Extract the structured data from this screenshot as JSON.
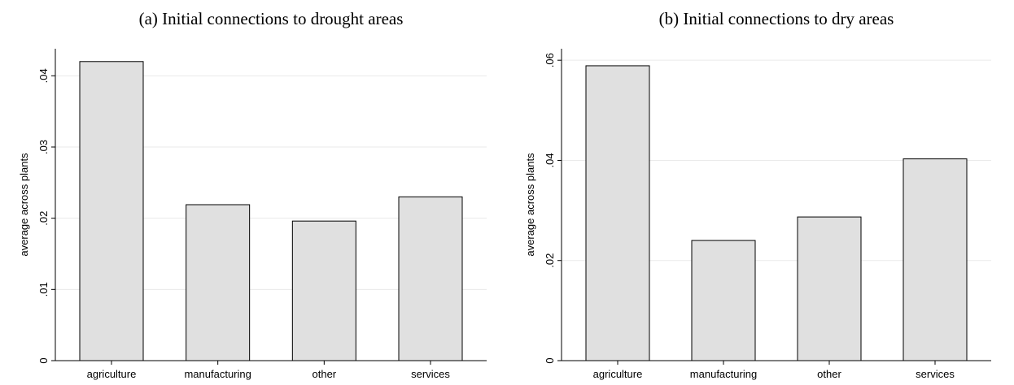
{
  "chart_data": [
    {
      "type": "bar",
      "title": "(a) Initial connections to drought areas",
      "y_label": "average across plants",
      "categories": [
        "agriculture",
        "manufacturing",
        "other",
        "services"
      ],
      "values": [
        0.042,
        0.0219,
        0.0196,
        0.023
      ],
      "color": "#e0e0e0",
      "ylim": [
        0,
        0.0438
      ],
      "yticks": [
        0,
        {
          "value": 0.01,
          "label": ".01"
        },
        {
          "value": 0.02,
          "label": ".02"
        },
        {
          "value": 0.03,
          "label": ".03"
        },
        {
          "value": 0.04,
          "label": ".04"
        }
      ],
      "grid": true
    },
    {
      "type": "bar",
      "title": "(b) Initial connections to dry areas",
      "y_label": "average across plants",
      "categories": [
        "agriculture",
        "manufacturing",
        "other",
        "services"
      ],
      "values": [
        0.0589,
        0.024,
        0.0287,
        0.0403
      ],
      "color": "#e0e0e0",
      "ylim": [
        0,
        0.0623
      ],
      "yticks": [
        0,
        {
          "value": 0.02,
          "label": ".02"
        },
        {
          "value": 0.04,
          "label": ".04"
        },
        {
          "value": 0.06,
          "label": ".06"
        }
      ],
      "grid": true
    }
  ]
}
